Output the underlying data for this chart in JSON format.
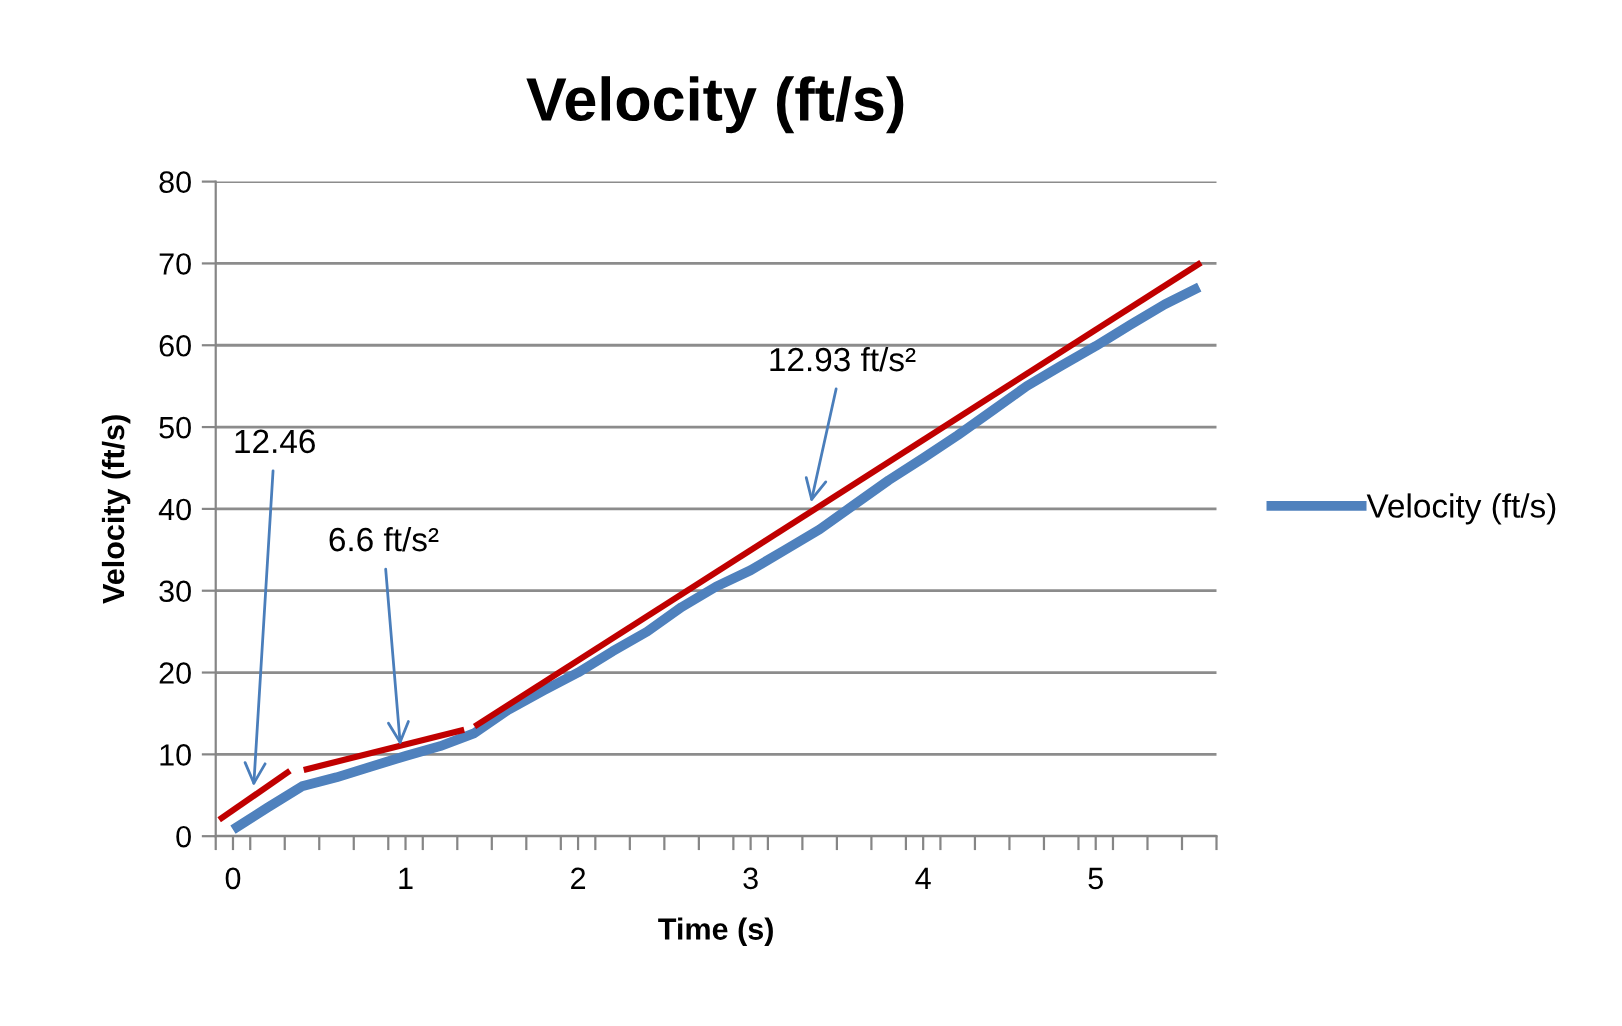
{
  "chart_data": {
    "type": "line",
    "title": "Velocity (ft/s)",
    "xlabel": "Time (s)",
    "ylabel": "Velocity (ft/s)",
    "xlim": [
      -0.1,
      5.7
    ],
    "xticks": [
      {
        "value": -0.1,
        "label": null
      },
      {
        "value": 0,
        "label": "0"
      },
      {
        "value": 0.1,
        "label": null
      },
      {
        "value": 0.3,
        "label": null
      },
      {
        "value": 0.5,
        "label": null
      },
      {
        "value": 0.7,
        "label": null
      },
      {
        "value": 0.9,
        "label": null
      },
      {
        "value": 1,
        "label": "1"
      },
      {
        "value": 1.1,
        "label": null
      },
      {
        "value": 1.3,
        "label": null
      },
      {
        "value": 1.5,
        "label": null
      },
      {
        "value": 1.7,
        "label": null
      },
      {
        "value": 1.9,
        "label": null
      },
      {
        "value": 2,
        "label": "2"
      },
      {
        "value": 2.1,
        "label": null
      },
      {
        "value": 2.3,
        "label": null
      },
      {
        "value": 2.5,
        "label": null
      },
      {
        "value": 2.7,
        "label": null
      },
      {
        "value": 2.9,
        "label": null
      },
      {
        "value": 3,
        "label": "3"
      },
      {
        "value": 3.1,
        "label": null
      },
      {
        "value": 3.3,
        "label": null
      },
      {
        "value": 3.5,
        "label": null
      },
      {
        "value": 3.7,
        "label": null
      },
      {
        "value": 3.9,
        "label": null
      },
      {
        "value": 4,
        "label": "4"
      },
      {
        "value": 4.1,
        "label": null
      },
      {
        "value": 4.3,
        "label": null
      },
      {
        "value": 4.5,
        "label": null
      },
      {
        "value": 4.7,
        "label": null
      },
      {
        "value": 4.9,
        "label": null
      },
      {
        "value": 5,
        "label": "5"
      },
      {
        "value": 5.1,
        "label": null
      },
      {
        "value": 5.3,
        "label": null
      },
      {
        "value": 5.5,
        "label": null
      },
      {
        "value": 5.7,
        "label": null
      }
    ],
    "ylim": [
      0,
      80
    ],
    "yticks": [
      0,
      10,
      20,
      30,
      40,
      50,
      60,
      70,
      80
    ],
    "grid": "y",
    "legend": "right",
    "series": [
      {
        "name": "Velocity (ft/s)",
        "color": "#4f81bd",
        "x": [
          0,
          0.2,
          0.4,
          0.6,
          0.8,
          1.0,
          1.2,
          1.4,
          1.6,
          1.8,
          2.0,
          2.2,
          2.4,
          2.6,
          2.8,
          3.0,
          3.2,
          3.4,
          3.6,
          3.8,
          4.0,
          4.2,
          4.4,
          4.6,
          4.8,
          5.0,
          5.2,
          5.4,
          5.6
        ],
        "values": [
          0.8,
          3.5,
          6.1,
          7.2,
          8.5,
          9.8,
          11.0,
          12.6,
          15.5,
          17.8,
          20,
          22.6,
          25,
          28,
          30.5,
          32.5,
          35,
          37.5,
          40.5,
          43.5,
          46.2,
          49,
          52,
          55,
          57.5,
          59.9,
          62.5,
          65,
          67.1
        ]
      },
      {
        "color": "#c00000",
        "x": [
          -0.08,
          0.33
        ],
        "values": [
          2.0,
          8.0
        ]
      },
      {
        "color": "#c00000",
        "x": [
          0.41,
          1.34
        ],
        "values": [
          8.1,
          13.0
        ]
      },
      {
        "color": "#c00000",
        "x": [
          1.4,
          5.61
        ],
        "values": [
          13.4,
          70.1
        ]
      }
    ],
    "annotations": [
      {
        "text": "12.46",
        "x": 0.12,
        "y": 6.1
      },
      {
        "text": "6.6 ft/s²",
        "x": 0.97,
        "y": 11.1
      },
      {
        "text": "12.93 ft/s²",
        "x": 3.35,
        "y": 40.8
      }
    ]
  }
}
